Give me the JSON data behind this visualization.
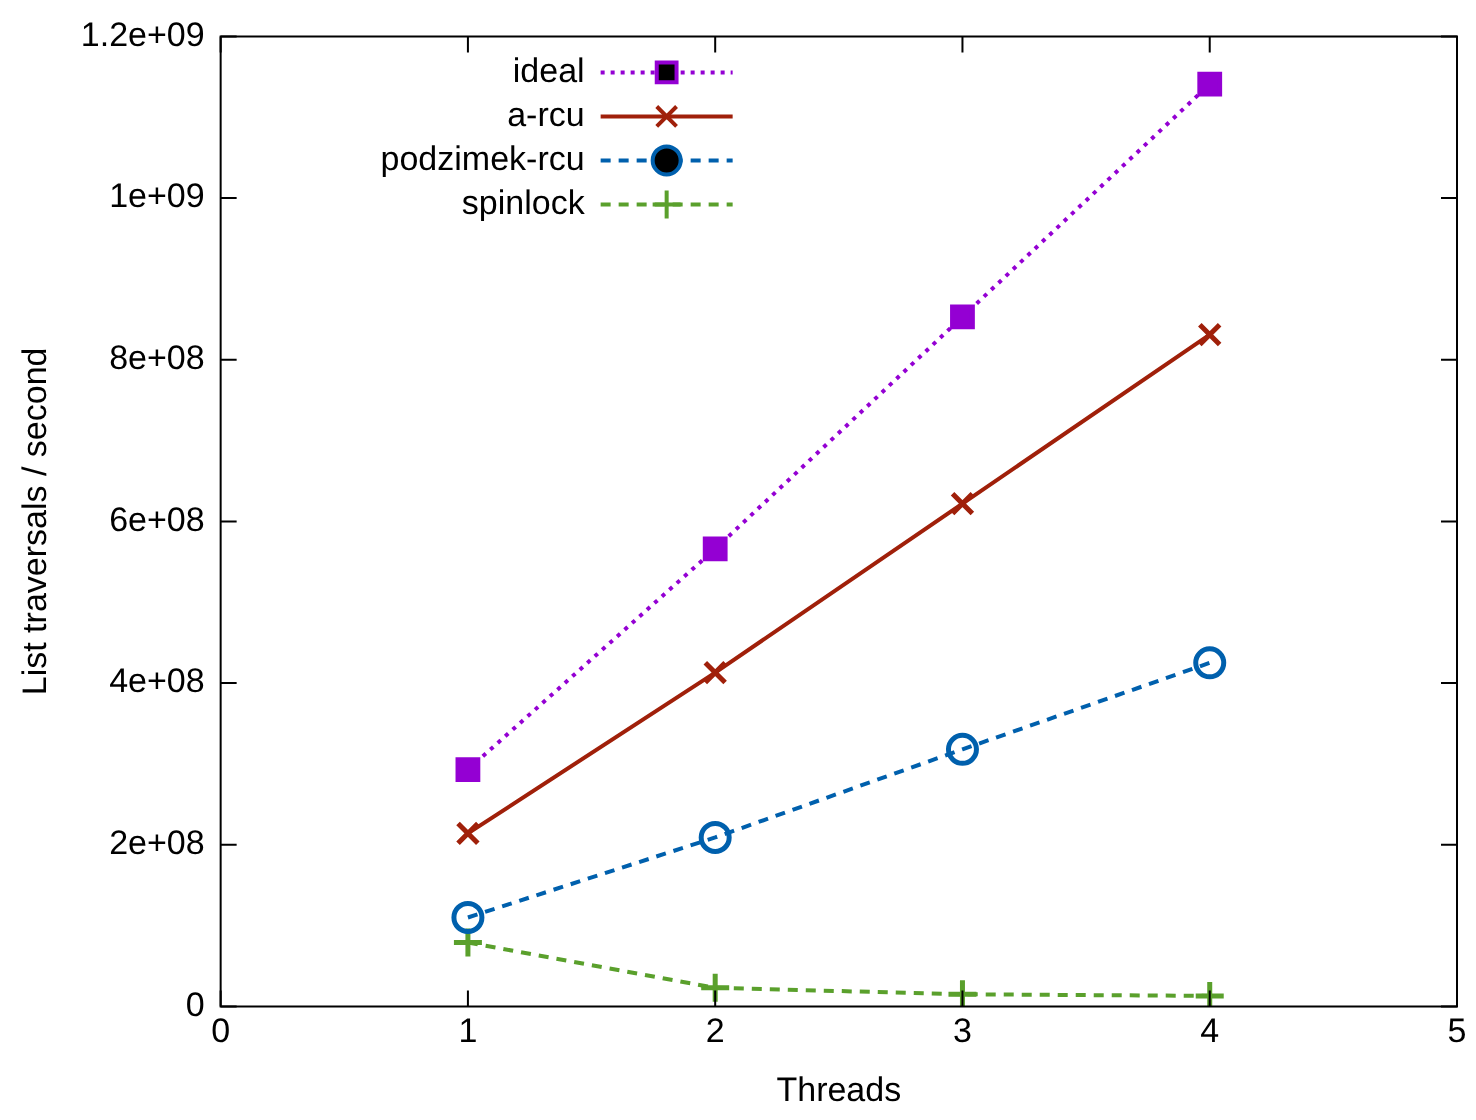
{
  "chart_data": {
    "type": "line",
    "xlabel": "Threads",
    "ylabel": "List traversals / second",
    "x": [
      1,
      2,
      3,
      4
    ],
    "series": [
      {
        "name": "ideal",
        "color": "#9400d3",
        "marker": "square",
        "line_style": "dotted",
        "values": [
          293000000,
          566000000,
          853000000,
          1141000000
        ]
      },
      {
        "name": "a-rcu",
        "color": "#a0200a",
        "marker": "cross",
        "line_style": "solid",
        "values": [
          214000000,
          413000000,
          622000000,
          831000000
        ]
      },
      {
        "name": "podzimek-rcu",
        "color": "#0060ad",
        "marker": "circle",
        "line_style": "dashed",
        "values": [
          110000000,
          209000000,
          318000000,
          425000000
        ]
      },
      {
        "name": "spinlock",
        "color": "#5aa02c",
        "marker": "plus",
        "line_style": "dashed",
        "values": [
          79000000,
          23000000,
          15000000,
          13000000
        ]
      }
    ],
    "xlim": [
      0,
      5
    ],
    "xticks": [
      0,
      1,
      2,
      3,
      4,
      5
    ],
    "ylim": [
      0,
      1200000000
    ],
    "yticks": [
      {
        "value": 0,
        "label": "0"
      },
      {
        "value": 200000000,
        "label": "2e+08"
      },
      {
        "value": 400000000,
        "label": "4e+08"
      },
      {
        "value": 600000000,
        "label": "6e+08"
      },
      {
        "value": 800000000,
        "label": "8e+08"
      },
      {
        "value": 1000000000,
        "label": "1e+09"
      },
      {
        "value": 1200000000,
        "label": "1.2e+09"
      }
    ],
    "grid": false,
    "legend": "top left"
  }
}
